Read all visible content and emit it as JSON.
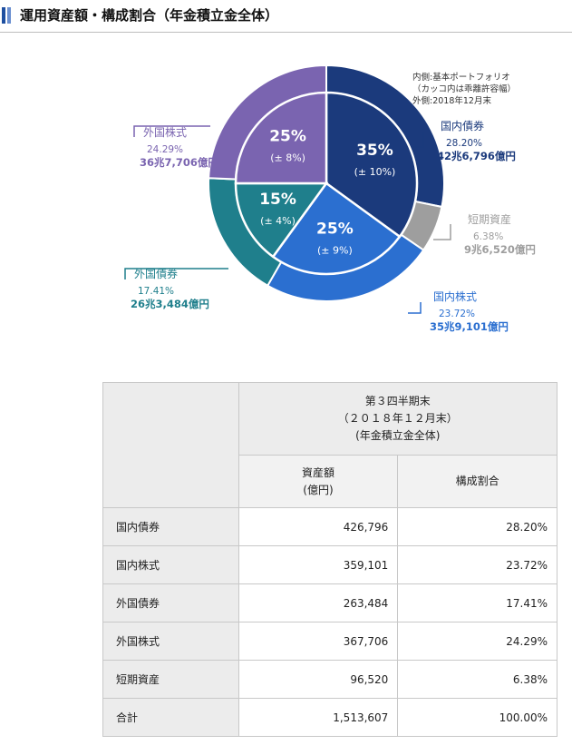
{
  "header": {
    "title": "運用資産額・構成割合（年金積立金全体）"
  },
  "chart_data": {
    "type": "pie",
    "note_lines": [
      "内側:基本ポートフォリオ",
      "（カッコ内は乖離許容幅）",
      "外側:2018年12月末"
    ],
    "outer": [
      {
        "name": "国内債券",
        "percent_label": "28.20%",
        "amount_label": "42兆6,796億円",
        "value": 28.2,
        "color": "#1b3a7c",
        "text_color": "#1b3a7c"
      },
      {
        "name": "短期資産",
        "percent_label": "6.38%",
        "amount_label": "9兆6,520億円",
        "value": 6.38,
        "color": "#9e9e9e",
        "text_color": "#9e9e9e"
      },
      {
        "name": "国内株式",
        "percent_label": "23.72%",
        "amount_label": "35兆9,101億円",
        "value": 23.72,
        "color": "#2b6fd0",
        "text_color": "#2b6fd0"
      },
      {
        "name": "外国債券",
        "percent_label": "17.41%",
        "amount_label": "26兆3,484億円",
        "value": 17.41,
        "color": "#1f7f8c",
        "text_color": "#1f7f8c"
      },
      {
        "name": "外国株式",
        "percent_label": "24.29%",
        "amount_label": "36兆7,706億円",
        "value": 24.29,
        "color": "#7a64b0",
        "text_color": "#7a64b0"
      }
    ],
    "inner": [
      {
        "name": "国内債券",
        "label": "35%",
        "range": "(± 10%)",
        "value": 35,
        "color": "#1b3a7c"
      },
      {
        "name": "国内株式",
        "label": "25%",
        "range": "(± 9%)",
        "value": 25,
        "color": "#2b6fd0"
      },
      {
        "name": "外国債券",
        "label": "15%",
        "range": "(± 4%)",
        "value": 15,
        "color": "#1f7f8c"
      },
      {
        "name": "外国株式",
        "label": "25%",
        "range": "(± 8%)",
        "value": 25,
        "color": "#7a64b0"
      }
    ]
  },
  "table": {
    "period_line1": "第３四半期末",
    "period_line2": "（２０１８年１２月末）",
    "period_line3": "(年金積立金全体)",
    "col_amount_line1": "資産額",
    "col_amount_line2": "(億円)",
    "col_share": "構成割合",
    "rows": [
      {
        "label": "国内債券",
        "amount": "426,796",
        "share": "28.20%"
      },
      {
        "label": "国内株式",
        "amount": "359,101",
        "share": "23.72%"
      },
      {
        "label": "外国債券",
        "amount": "263,484",
        "share": "17.41%"
      },
      {
        "label": "外国株式",
        "amount": "367,706",
        "share": "24.29%"
      },
      {
        "label": "短期資産",
        "amount": "96,520",
        "share": "6.38%"
      },
      {
        "label": "合計",
        "amount": "1,513,607",
        "share": "100.00%"
      }
    ]
  }
}
